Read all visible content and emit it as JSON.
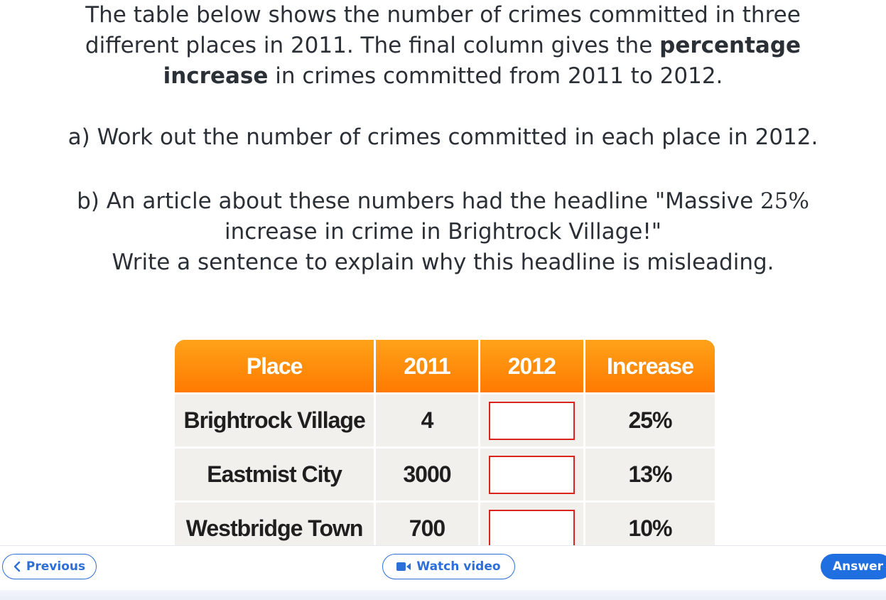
{
  "question": {
    "intro_lines": [
      "The table below shows the number of crimes committed in three",
      "different places in 2011. The final column gives the",
      "percentage",
      "increase",
      "in crimes committed from 2011 to 2012."
    ],
    "part_a": "a) Work out the number of crimes committed in each place in 2012.",
    "part_b_line1": "b) An article about these numbers had the headline \"Massive",
    "part_b_pct": "25%",
    "part_b_line2": "increase in crime in Brightrock Village!\"",
    "part_b_line3": "Write a sentence to explain why this headline is misleading."
  },
  "table": {
    "headers": [
      "Place",
      "2011",
      "2012",
      "Increase"
    ],
    "rows": [
      {
        "place": "Brightrock Village",
        "y2011": "4",
        "y2012": "",
        "increase": "25%"
      },
      {
        "place": "Eastmist City",
        "y2011": "3000",
        "y2012": "",
        "increase": "13%"
      },
      {
        "place": "Westbridge Town",
        "y2011": "700",
        "y2012": "",
        "increase": "10%"
      }
    ]
  },
  "footer": {
    "previous_label": "Previous",
    "video_label": "Watch video",
    "answer_label": "Answer"
  },
  "colors": {
    "header_orange": "#ff8c0a",
    "button_blue": "#1f6fe0",
    "answer_box_border": "#d9251c"
  }
}
